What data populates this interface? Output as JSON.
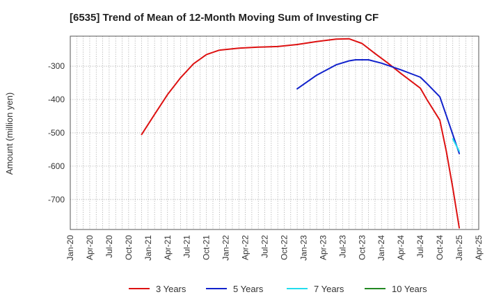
{
  "chart_data": {
    "type": "line",
    "title": "[6535]  Trend of Mean of 12-Month Moving Sum of Investing CF",
    "ylabel": "Amount (million yen)",
    "xlabel": "",
    "x_ticks": [
      "Jan-20",
      "Apr-20",
      "Jul-20",
      "Oct-20",
      "Jan-21",
      "Apr-21",
      "Jul-21",
      "Oct-21",
      "Jan-22",
      "Apr-22",
      "Jul-22",
      "Oct-22",
      "Jan-23",
      "Apr-23",
      "Jul-23",
      "Oct-23",
      "Jan-24",
      "Apr-24",
      "Jul-24",
      "Oct-24",
      "Jan-25",
      "Apr-25"
    ],
    "y_ticks": [
      -300,
      -400,
      -500,
      -600,
      -700
    ],
    "ylim": [
      -790,
      -210
    ],
    "grid": true,
    "legend_position": "bottom",
    "series": [
      {
        "name": "3 Years",
        "color": "#dd1111",
        "points": [
          [
            "Dec-20",
            -505
          ],
          [
            "Feb-21",
            -445
          ],
          [
            "Apr-21",
            -385
          ],
          [
            "Jun-21",
            -335
          ],
          [
            "Aug-21",
            -293
          ],
          [
            "Oct-21",
            -265
          ],
          [
            "Dec-21",
            -252
          ],
          [
            "Mar-22",
            -246
          ],
          [
            "Jun-22",
            -243
          ],
          [
            "Sep-22",
            -241
          ],
          [
            "Dec-22",
            -235
          ],
          [
            "Mar-23",
            -226
          ],
          [
            "Jun-23",
            -219
          ],
          [
            "Aug-23",
            -218
          ],
          [
            "Oct-23",
            -232
          ],
          [
            "Dec-23",
            -262
          ],
          [
            "Feb-24",
            -291
          ],
          [
            "Apr-24",
            -322
          ],
          [
            "Jul-24",
            -366
          ],
          [
            "Aug-24",
            -400
          ],
          [
            "Oct-24",
            -462
          ],
          [
            "Nov-24",
            -555
          ],
          [
            "Dec-24",
            -665
          ],
          [
            "Jan-25",
            -785
          ]
        ]
      },
      {
        "name": "5 Years",
        "color": "#1122cc",
        "points": [
          [
            "Dec-22",
            -368
          ],
          [
            "Mar-23",
            -327
          ],
          [
            "Jun-23",
            -296
          ],
          [
            "Aug-23",
            -284
          ],
          [
            "Sep-23",
            -281
          ],
          [
            "Nov-23",
            -281
          ],
          [
            "Jan-24",
            -291
          ],
          [
            "Apr-24",
            -311
          ],
          [
            "Jul-24",
            -333
          ],
          [
            "Aug-24",
            -352
          ],
          [
            "Oct-24",
            -392
          ],
          [
            "Nov-24",
            -448
          ],
          [
            "Dec-24",
            -505
          ],
          [
            "Jan-25",
            -562
          ]
        ]
      },
      {
        "name": "7 Years",
        "color": "#22ddee",
        "points": [
          [
            "Dec-24",
            -518
          ],
          [
            "Jan-25",
            -555
          ]
        ]
      },
      {
        "name": "10 Years",
        "color": "#228822",
        "points": []
      }
    ]
  }
}
